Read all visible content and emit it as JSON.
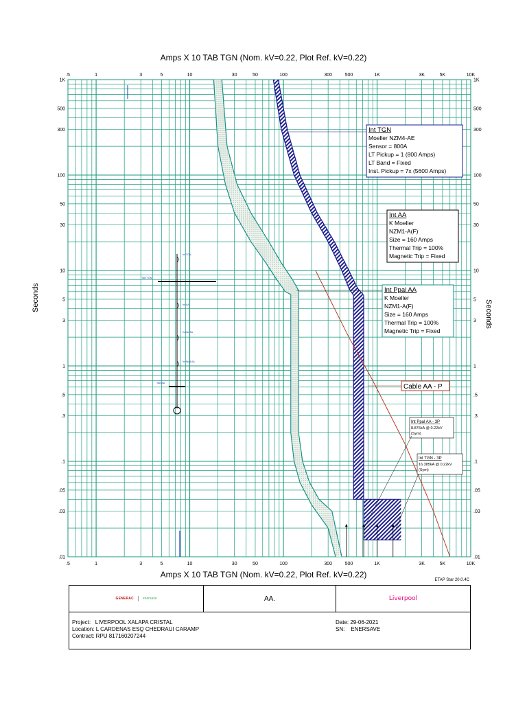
{
  "header": {
    "title": "Amps  X  10   TAB TGN (Nom. kV=0.22, Plot Ref. kV=0.22)",
    "footer_title": "Amps  X  10   TAB TGN (Nom. kV=0.22, Plot Ref. kV=0.22)",
    "software_version": "ETAP Star 20.0.4C",
    "y_axis_label": "Seconds"
  },
  "chart_data": {
    "type": "line",
    "x_scale": "log",
    "y_scale": "log",
    "xlim": [
      0.5,
      10000
    ],
    "ylim": [
      0.01,
      1000
    ],
    "x_ticks": [
      {
        "v": 0.5,
        "label": ".5"
      },
      {
        "v": 1,
        "label": "1"
      },
      {
        "v": 3,
        "label": "3"
      },
      {
        "v": 5,
        "label": "5"
      },
      {
        "v": 10,
        "label": "10"
      },
      {
        "v": 30,
        "label": "30"
      },
      {
        "v": 50,
        "label": "50"
      },
      {
        "v": 100,
        "label": "100"
      },
      {
        "v": 300,
        "label": "300"
      },
      {
        "v": 500,
        "label": "500"
      },
      {
        "v": 1000,
        "label": "1K"
      },
      {
        "v": 3000,
        "label": "3K"
      },
      {
        "v": 5000,
        "label": "5K"
      },
      {
        "v": 10000,
        "label": "10K"
      }
    ],
    "y_ticks": [
      {
        "v": 1000,
        "label": "1K"
      },
      {
        "v": 500,
        "label": "500"
      },
      {
        "v": 300,
        "label": "300"
      },
      {
        "v": 100,
        "label": "100"
      },
      {
        "v": 50,
        "label": "50"
      },
      {
        "v": 30,
        "label": "30"
      },
      {
        "v": 10,
        "label": "10"
      },
      {
        "v": 5,
        "label": "5"
      },
      {
        "v": 3,
        "label": "3"
      },
      {
        "v": 1,
        "label": "1"
      },
      {
        "v": 0.5,
        "label": ".5"
      },
      {
        "v": 0.3,
        "label": ".3"
      },
      {
        "v": 0.1,
        "label": ".1"
      },
      {
        "v": 0.05,
        "label": ".05"
      },
      {
        "v": 0.03,
        "label": ".03"
      },
      {
        "v": 0.01,
        "label": ".01"
      }
    ],
    "grid": true,
    "series": [
      {
        "key": "int_aa_min",
        "color": "#1a8f8a",
        "x": [
          18,
          20,
          24,
          30,
          45,
          65,
          85,
          105,
          120,
          120,
          120,
          130,
          150,
          200,
          300,
          360
        ],
        "y": [
          1000,
          200,
          80,
          40,
          20,
          12,
          8,
          6,
          5.6,
          2,
          0.2,
          0.1,
          0.06,
          0.035,
          0.02,
          0.01
        ]
      },
      {
        "key": "int_aa_max",
        "color": "#1a8f8a",
        "x": [
          22,
          25,
          32,
          45,
          70,
          95,
          125,
          145,
          145,
          145,
          160,
          190,
          240,
          330,
          420
        ],
        "y": [
          1000,
          200,
          80,
          40,
          20,
          12,
          8,
          6.2,
          2,
          0.2,
          0.1,
          0.06,
          0.04,
          0.03,
          0.01
        ]
      },
      {
        "key": "int_tgn_min",
        "color": "#1b1b8f",
        "x": [
          78,
          95,
          130,
          200,
          300,
          420,
          500,
          560,
          560,
          560,
          1800
        ],
        "y": [
          1000,
          300,
          100,
          40,
          20,
          10,
          6.5,
          5.5,
          1,
          0.04,
          0.04
        ]
      },
      {
        "key": "int_tgn_max",
        "color": "#1b1b8f",
        "x": [
          88,
          110,
          150,
          230,
          350,
          500,
          620,
          720,
          720,
          720,
          1800
        ],
        "y": [
          1000,
          300,
          100,
          40,
          20,
          10,
          6.5,
          5.5,
          1,
          0.015,
          0.015
        ]
      },
      {
        "key": "cable_aa_p",
        "color": "#c0392b",
        "x": [
          220,
          500,
          900,
          2000,
          4000,
          6000
        ],
        "y": [
          10,
          2,
          0.7,
          0.15,
          0.03,
          0.01
        ]
      }
    ],
    "legend_boxes": [
      {
        "key": "int_tgn",
        "title": "Int TGN",
        "lines": [
          "Moeller  NZM4-AE",
          "Sensor = 800A",
          "LT Pickup = 1 (800 Amps)",
          "LT Band = Fixed",
          "Inst. Pickup = 7x (5600 Amps)"
        ]
      },
      {
        "key": "int_aa",
        "title": "Int AA",
        "lines": [
          "K Moeller",
          "NZM1-A(F)",
          "Size = 160 Amps",
          "Thermal Trip = 100%",
          "Magnetic Trip = Fixed"
        ]
      },
      {
        "key": "int_ppal_aa",
        "title": "Int Ppal AA",
        "lines": [
          "K Moeller",
          "NZM1-A(F)",
          "Size = 160 Amps",
          "Thermal Trip = 100%",
          "Magnetic Trip = Fixed"
        ]
      },
      {
        "key": "cable_aa_p",
        "title": "Cable AA - P",
        "lines": []
      }
    ],
    "fault_boxes": [
      {
        "key": "fault_int_ppal_aa",
        "title": "Int Ppal AA - 3P",
        "lines": [
          "8.876kA @ 0.22kV",
          "(Sym)"
        ]
      },
      {
        "key": "fault_int_tgn",
        "title": "Int TGN - 3P",
        "lines": [
          "16.385kA @ 0.22kV",
          "(Sym)"
        ]
      }
    ],
    "one_line_labels": {
      "int_tgn": "Int TGN",
      "tab_tgn": "TAB TGN",
      "int_aa": "Int AA",
      "cable_aa": "Cable AA",
      "int_ppal_aa": "Int Ppal AA",
      "tab_aa": "TAB AA"
    }
  },
  "title_block": {
    "logo_left_a": "GENERAC",
    "logo_left_b": "enersave",
    "drawing_name": "AA.",
    "logo_right": "Liverpool",
    "project": "Project:   LIVERPOOL XALAPA CRISTAL",
    "location": "Location: L CARDENAS ESQ CHEDRAUI CARAMP",
    "contract": "Contract: RPU 817160207244",
    "date": "Date: 29-06-2021",
    "sn": "SN:    ENERSAVE"
  }
}
